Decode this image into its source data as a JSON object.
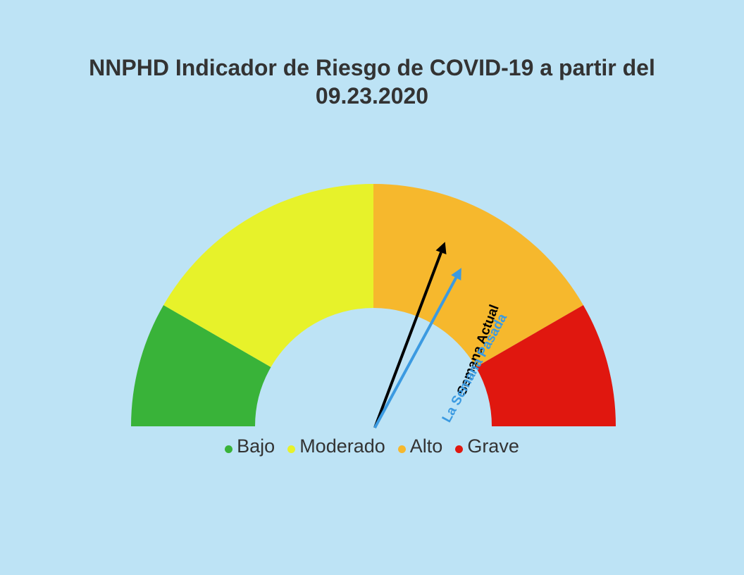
{
  "title": {
    "line1": "NNPHD Indicador de Riesgo de COVID-19 a partir del",
    "line2": "09.23.2020"
  },
  "chart_data": {
    "type": "gauge",
    "segments": [
      {
        "label": "Bajo",
        "color": "#39b339",
        "share": 0.1667
      },
      {
        "label": "Moderado",
        "color": "#e7f22a",
        "share": 0.3333
      },
      {
        "label": "Alto",
        "color": "#f6b82d",
        "share": 0.3333
      },
      {
        "label": "Grave",
        "color": "#e0170f",
        "share": 0.1667
      }
    ],
    "pointers": [
      {
        "label": "Semana Actual",
        "color": "#000000",
        "value": 0.615
      },
      {
        "label": "La Semana Pasada",
        "color": "#3b9ae1",
        "value": 0.658
      }
    ],
    "legend_position": "bottom"
  }
}
